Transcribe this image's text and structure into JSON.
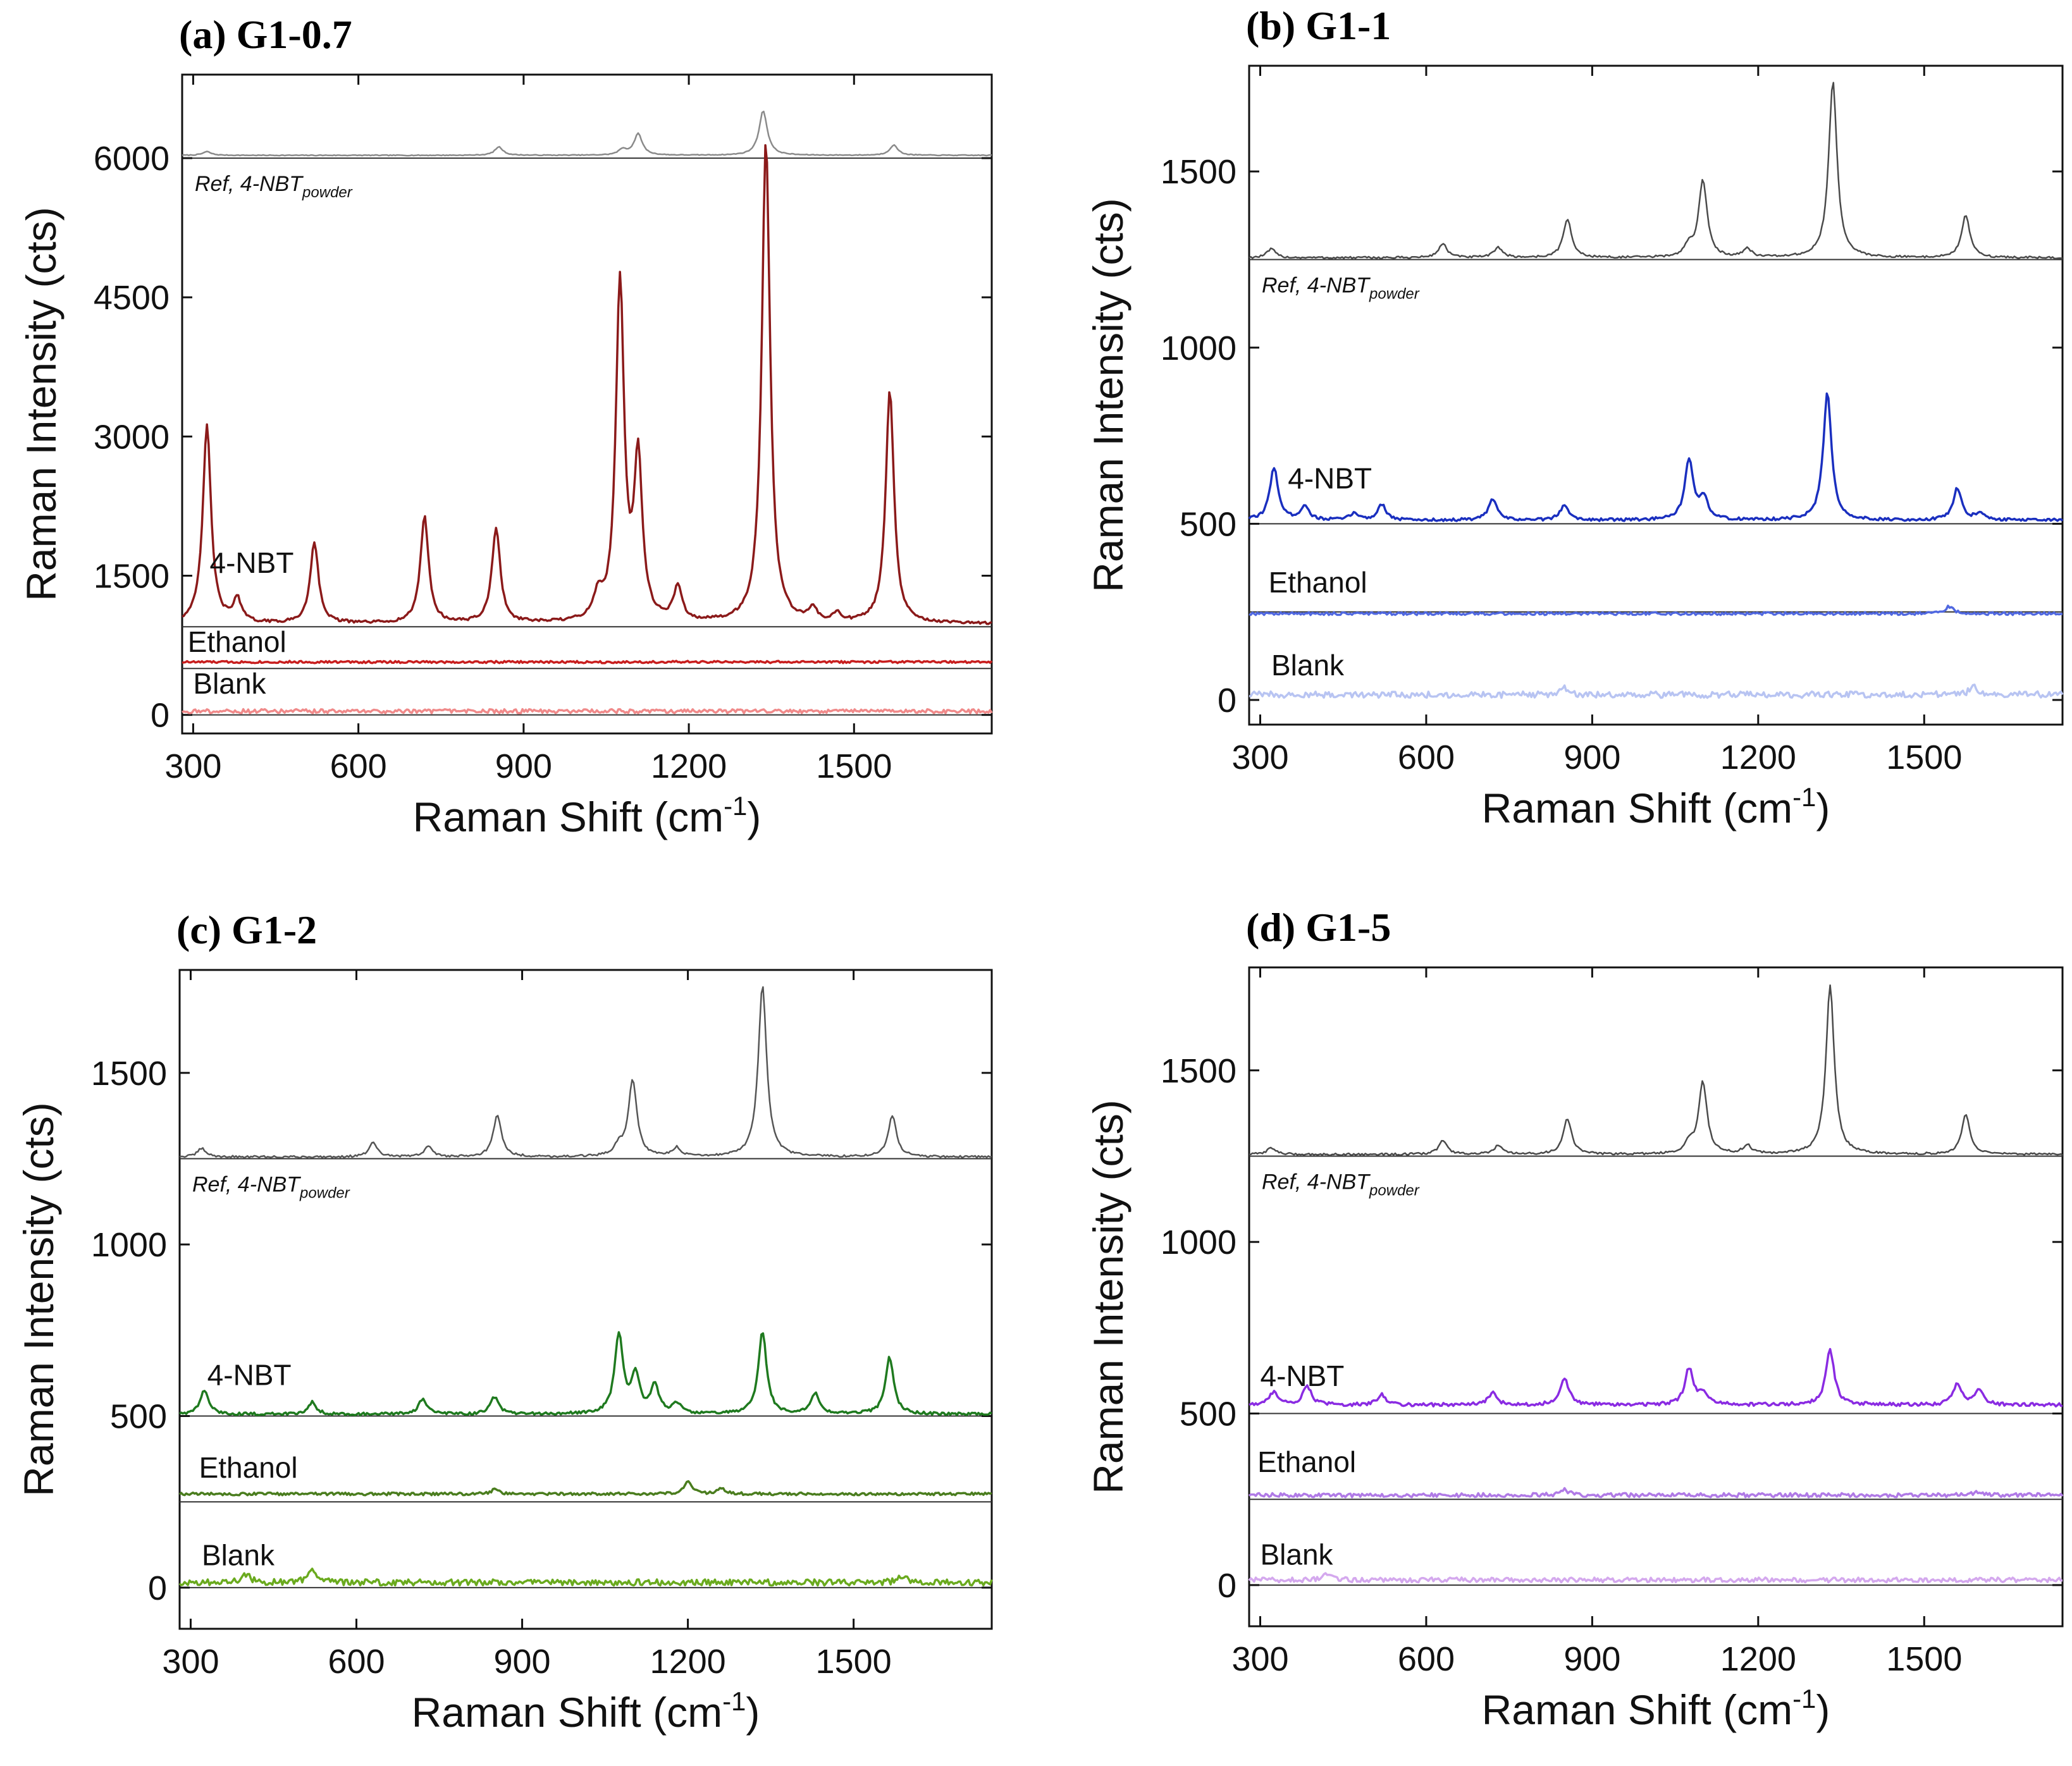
{
  "chart_data": [
    {
      "type": "line",
      "title": "(a) G1-0.7",
      "xlabel": "Raman Shift (cm",
      "xlabel_sup": "-1",
      "xlabel_end": ")",
      "ylabel": "Raman Intensity (cts)",
      "xlim": [
        280,
        1750
      ],
      "ylim": [
        -200,
        6900
      ],
      "xticks": [
        300,
        600,
        900,
        1200,
        1500
      ],
      "yticks": [
        0,
        1500,
        3000,
        4500,
        6000
      ],
      "ref_label": "Ref, 4-NBT",
      "ref_sub": "powder",
      "series": [
        {
          "name": "Ref, 4-NBT powder",
          "color": "#8a8a8a",
          "baseline": 6030,
          "noise": 4,
          "peaks": [
            [
              325,
              40
            ],
            [
              855,
              90
            ],
            [
              1080,
              60
            ],
            [
              1108,
              230
            ],
            [
              1335,
              480
            ],
            [
              1572,
              110
            ]
          ]
        },
        {
          "name": "4-NBT",
          "color": "#8b1a1a",
          "baseline": 980,
          "noise": 15,
          "peaks": [
            [
              325,
              2130
            ],
            [
              380,
              250
            ],
            [
              520,
              880
            ],
            [
              720,
              1150
            ],
            [
              850,
              1030
            ],
            [
              1035,
              250
            ],
            [
              1075,
              3650
            ],
            [
              1108,
              1720
            ],
            [
              1180,
              370
            ],
            [
              1340,
              5200
            ],
            [
              1425,
              130
            ],
            [
              1470,
              80
            ],
            [
              1565,
              2500
            ]
          ]
        },
        {
          "name": "Ethanol",
          "color": "#c81e1e",
          "baseline": 570,
          "noise": 12,
          "peaks": []
        },
        {
          "name": "Blank",
          "color": "#f08a8a",
          "baseline": 40,
          "noise": 22,
          "peaks": []
        }
      ],
      "zero_lines": [
        6000,
        950,
        500,
        0
      ],
      "labels": [
        {
          "text": "4-NBT",
          "x": 330,
          "y": 1530
        },
        {
          "text": "Ethanol",
          "x": 290,
          "y": 680
        },
        {
          "text": "Blank",
          "x": 300,
          "y": 230
        }
      ]
    },
    {
      "type": "line",
      "title": "(b) G1-1",
      "xlabel": "Raman Shift (cm",
      "xlabel_sup": "-1",
      "xlabel_end": ")",
      "ylabel": "Raman Intensity (cts)",
      "xlim": [
        280,
        1750
      ],
      "ylim": [
        -70,
        1800
      ],
      "xticks": [
        300,
        600,
        900,
        1200,
        1500
      ],
      "yticks": [
        0,
        500,
        1000,
        1500
      ],
      "ref_label": "Ref, 4-NBT",
      "ref_sub": "powder",
      "series": [
        {
          "name": "Ref, 4-NBT powder",
          "color": "#4a4a4a",
          "baseline": 1255,
          "noise": 3,
          "peaks": [
            [
              320,
              25
            ],
            [
              630,
              40
            ],
            [
              730,
              30
            ],
            [
              855,
              110
            ],
            [
              1075,
              30
            ],
            [
              1100,
              220
            ],
            [
              1180,
              25
            ],
            [
              1335,
              500
            ],
            [
              1575,
              120
            ]
          ]
        },
        {
          "name": "4-NBT",
          "color": "#1a2fbf",
          "baseline": 510,
          "noise": 4,
          "peaks": [
            [
              325,
              150
            ],
            [
              380,
              40
            ],
            [
              470,
              20
            ],
            [
              520,
              45
            ],
            [
              720,
              60
            ],
            [
              850,
              45
            ],
            [
              1075,
              170
            ],
            [
              1102,
              60
            ],
            [
              1325,
              360
            ],
            [
              1560,
              90
            ],
            [
              1600,
              20
            ]
          ]
        },
        {
          "name": "Ethanol",
          "color": "#5068e0",
          "baseline": 245,
          "noise": 4,
          "peaks": [
            [
              1545,
              20
            ]
          ]
        },
        {
          "name": "Blank",
          "color": "#b8c4f2",
          "baseline": 15,
          "noise": 9,
          "peaks": [
            [
              850,
              20
            ],
            [
              1590,
              25
            ]
          ]
        }
      ],
      "zero_lines": [
        1250,
        500,
        250
      ],
      "labels": [
        {
          "text": "4-NBT",
          "x": 350,
          "y": 600
        },
        {
          "text": "Ethanol",
          "x": 315,
          "y": 305
        },
        {
          "text": "Blank",
          "x": 320,
          "y": 70
        }
      ]
    },
    {
      "type": "line",
      "title": "(c) G1-2",
      "xlabel": "Raman Shift (cm",
      "xlabel_sup": "-1",
      "xlabel_end": ")",
      "ylabel": "Raman Intensity (cts)",
      "xlim": [
        280,
        1750
      ],
      "ylim": [
        -120,
        1800
      ],
      "xticks": [
        300,
        600,
        900,
        1200,
        1500
      ],
      "yticks": [
        0,
        500,
        1000,
        1500
      ],
      "ref_label": "Ref, 4-NBT",
      "ref_sub": "powder",
      "series": [
        {
          "name": "Ref, 4-NBT powder",
          "color": "#555555",
          "baseline": 1255,
          "noise": 3,
          "peaks": [
            [
              320,
              25
            ],
            [
              630,
              40
            ],
            [
              730,
              30
            ],
            [
              855,
              120
            ],
            [
              1075,
              30
            ],
            [
              1100,
              225
            ],
            [
              1180,
              25
            ],
            [
              1335,
              500
            ],
            [
              1570,
              120
            ]
          ]
        },
        {
          "name": "4-NBT",
          "color": "#1f7a1f",
          "baseline": 505,
          "noise": 4,
          "peaks": [
            [
              325,
              70
            ],
            [
              520,
              35
            ],
            [
              720,
              45
            ],
            [
              850,
              50
            ],
            [
              1075,
              230
            ],
            [
              1105,
              110
            ],
            [
              1140,
              80
            ],
            [
              1180,
              30
            ],
            [
              1335,
              240
            ],
            [
              1430,
              60
            ],
            [
              1565,
              165
            ]
          ]
        },
        {
          "name": "Ethanol",
          "color": "#4a7d1e",
          "baseline": 273,
          "noise": 4,
          "peaks": [
            [
              850,
              12
            ],
            [
              1200,
              35
            ],
            [
              1260,
              15
            ]
          ]
        },
        {
          "name": "Blank",
          "color": "#6aaa1e",
          "baseline": 15,
          "noise": 9,
          "peaks": [
            [
              400,
              25
            ],
            [
              520,
              35
            ],
            [
              1590,
              20
            ]
          ]
        }
      ],
      "zero_lines": [
        1250,
        500,
        250,
        0
      ],
      "labels": [
        {
          "text": "4-NBT",
          "x": 330,
          "y": 590
        },
        {
          "text": "Ethanol",
          "x": 315,
          "y": 320
        },
        {
          "text": "Blank",
          "x": 320,
          "y": 65
        }
      ]
    },
    {
      "type": "line",
      "title": "(d) G1-5",
      "xlabel": "Raman Shift (cm",
      "xlabel_sup": "-1",
      "xlabel_end": ")",
      "ylabel": "Raman Intensity (cts)",
      "xlim": [
        280,
        1750
      ],
      "ylim": [
        -120,
        1800
      ],
      "xticks": [
        300,
        600,
        900,
        1200,
        1500
      ],
      "yticks": [
        0,
        500,
        1000,
        1500
      ],
      "ref_label": "Ref, 4-NBT",
      "ref_sub": "powder",
      "series": [
        {
          "name": "Ref, 4-NBT powder",
          "color": "#4a4a4a",
          "baseline": 1255,
          "noise": 3,
          "peaks": [
            [
              320,
              20
            ],
            [
              630,
              40
            ],
            [
              730,
              25
            ],
            [
              855,
              105
            ],
            [
              1075,
              30
            ],
            [
              1100,
              210
            ],
            [
              1180,
              25
            ],
            [
              1330,
              490
            ],
            [
              1575,
              115
            ]
          ]
        },
        {
          "name": "4-NBT",
          "color": "#8a2be2",
          "baseline": 525,
          "noise": 5,
          "peaks": [
            [
              325,
              40
            ],
            [
              385,
              55
            ],
            [
              520,
              30
            ],
            [
              720,
              35
            ],
            [
              850,
              80
            ],
            [
              1075,
              105
            ],
            [
              1100,
              35
            ],
            [
              1330,
              160
            ],
            [
              1560,
              60
            ],
            [
              1600,
              45
            ]
          ]
        },
        {
          "name": "Ethanol",
          "color": "#b07ae6",
          "baseline": 262,
          "noise": 6,
          "peaks": [
            [
              850,
              15
            ],
            [
              1600,
              12
            ]
          ]
        },
        {
          "name": "Blank",
          "color": "#d4a8ee",
          "baseline": 15,
          "noise": 7,
          "peaks": [
            [
              420,
              15
            ]
          ]
        }
      ],
      "zero_lines": [
        1250,
        500,
        250,
        0
      ],
      "labels": [
        {
          "text": "4-NBT",
          "x": 300,
          "y": 580
        },
        {
          "text": "Ethanol",
          "x": 295,
          "y": 330
        },
        {
          "text": "Blank",
          "x": 300,
          "y": 60
        }
      ]
    }
  ]
}
